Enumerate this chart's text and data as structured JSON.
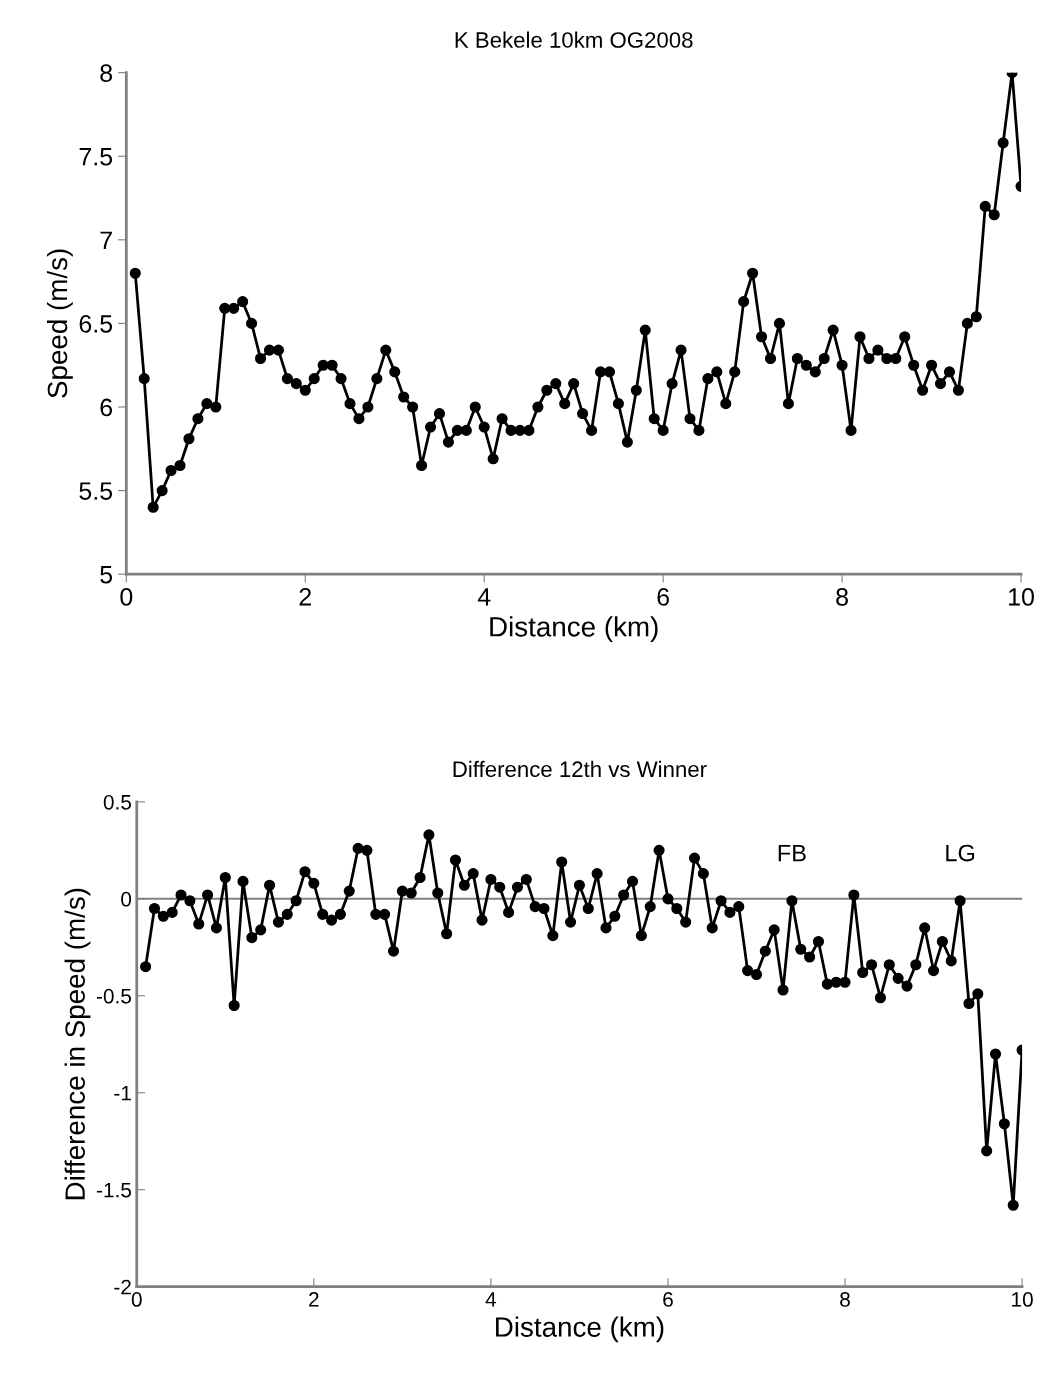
{
  "chart_data": [
    {
      "type": "line",
      "title": "K Bekele 10km OG2008",
      "xlabel": "Distance (km)",
      "ylabel": "Speed (m/s)",
      "x": [
        0.1,
        0.2,
        0.3,
        0.4,
        0.5,
        0.6,
        0.7,
        0.8,
        0.9,
        1.0,
        1.1,
        1.2,
        1.3,
        1.4,
        1.5,
        1.6,
        1.7,
        1.8,
        1.9,
        2.0,
        2.1,
        2.2,
        2.3,
        2.4,
        2.5,
        2.6,
        2.7,
        2.8,
        2.9,
        3.0,
        3.1,
        3.2,
        3.3,
        3.4,
        3.5,
        3.6,
        3.7,
        3.8,
        3.9,
        4.0,
        4.1,
        4.2,
        4.3,
        4.4,
        4.5,
        4.6,
        4.7,
        4.8,
        4.9,
        5.0,
        5.1,
        5.2,
        5.3,
        5.4,
        5.5,
        5.6,
        5.7,
        5.8,
        5.9,
        6.0,
        6.1,
        6.2,
        6.3,
        6.4,
        6.5,
        6.6,
        6.7,
        6.8,
        6.9,
        7.0,
        7.1,
        7.2,
        7.3,
        7.4,
        7.5,
        7.6,
        7.7,
        7.8,
        7.9,
        8.0,
        8.1,
        8.2,
        8.3,
        8.4,
        8.5,
        8.6,
        8.7,
        8.8,
        8.9,
        9.0,
        9.1,
        9.2,
        9.3,
        9.4,
        9.5,
        9.6,
        9.7,
        9.8,
        9.9,
        10.0
      ],
      "series": [
        {
          "color": "#000000",
          "values": [
            6.8,
            6.17,
            5.4,
            5.5,
            5.62,
            5.65,
            5.81,
            5.93,
            6.02,
            6.0,
            6.59,
            6.59,
            6.63,
            6.5,
            6.29,
            6.34,
            6.34,
            6.17,
            6.14,
            6.1,
            6.17,
            6.25,
            6.25,
            6.17,
            6.02,
            5.93,
            6.0,
            6.17,
            6.34,
            6.21,
            6.06,
            6.0,
            5.65,
            5.88,
            5.96,
            5.79,
            5.86,
            5.86,
            6.0,
            5.88,
            5.69,
            5.93,
            5.86,
            5.86,
            5.86,
            6.0,
            6.1,
            6.14,
            6.02,
            6.14,
            5.96,
            5.86,
            6.21,
            6.21,
            6.02,
            5.79,
            6.1,
            6.46,
            5.93,
            5.86,
            6.14,
            6.34,
            5.93,
            5.86,
            6.17,
            6.21,
            6.02,
            6.21,
            6.63,
            6.8,
            6.42,
            6.29,
            6.5,
            6.02,
            6.29,
            6.25,
            6.21,
            6.29,
            6.46,
            6.25,
            5.86,
            6.42,
            6.29,
            6.34,
            6.29,
            6.29,
            6.42,
            6.25,
            6.1,
            6.25,
            6.14,
            6.21,
            6.1,
            6.5,
            6.54,
            7.2,
            7.15,
            7.58,
            8.0,
            7.32
          ]
        }
      ],
      "xlim": [
        0,
        10
      ],
      "xticks": [
        0,
        2,
        4,
        6,
        8,
        10
      ],
      "ylim": [
        5,
        8
      ],
      "yticks": [
        5,
        5.5,
        6,
        6.5,
        7,
        7.5,
        8
      ],
      "marker": "circle",
      "line_style": "solid",
      "grid": false,
      "legend": false
    },
    {
      "type": "line",
      "title": "Difference 12th vs Winner",
      "xlabel": "Distance (km)",
      "ylabel": "Difference in Speed (m/s)",
      "x": [
        0.1,
        0.2,
        0.3,
        0.4,
        0.5,
        0.6,
        0.7,
        0.8,
        0.9,
        1.0,
        1.1,
        1.2,
        1.3,
        1.4,
        1.5,
        1.6,
        1.7,
        1.8,
        1.9,
        2.0,
        2.1,
        2.2,
        2.3,
        2.4,
        2.5,
        2.6,
        2.7,
        2.8,
        2.9,
        3.0,
        3.1,
        3.2,
        3.3,
        3.4,
        3.5,
        3.6,
        3.7,
        3.8,
        3.9,
        4.0,
        4.1,
        4.2,
        4.3,
        4.4,
        4.5,
        4.6,
        4.7,
        4.8,
        4.9,
        5.0,
        5.1,
        5.2,
        5.3,
        5.4,
        5.5,
        5.6,
        5.7,
        5.8,
        5.9,
        6.0,
        6.1,
        6.2,
        6.3,
        6.4,
        6.5,
        6.6,
        6.7,
        6.8,
        6.9,
        7.0,
        7.1,
        7.2,
        7.3,
        7.4,
        7.5,
        7.6,
        7.7,
        7.8,
        7.9,
        8.0,
        8.1,
        8.2,
        8.3,
        8.4,
        8.5,
        8.6,
        8.7,
        8.8,
        8.9,
        9.0,
        9.1,
        9.2,
        9.3,
        9.4,
        9.5,
        9.6,
        9.7,
        9.8,
        9.9,
        10.0
      ],
      "series": [
        {
          "color": "#000000",
          "values": [
            -0.35,
            -0.05,
            -0.09,
            -0.07,
            0.02,
            -0.01,
            -0.13,
            0.02,
            -0.15,
            0.11,
            -0.55,
            0.09,
            -0.2,
            -0.16,
            0.07,
            -0.12,
            -0.08,
            -0.01,
            0.14,
            0.08,
            -0.08,
            -0.11,
            -0.08,
            0.04,
            0.26,
            0.25,
            -0.08,
            -0.08,
            -0.27,
            0.04,
            0.03,
            0.11,
            0.33,
            0.03,
            -0.18,
            0.2,
            0.07,
            0.13,
            -0.11,
            0.1,
            0.06,
            -0.07,
            0.06,
            0.1,
            -0.04,
            -0.05,
            -0.19,
            0.19,
            -0.12,
            0.07,
            -0.05,
            0.13,
            -0.15,
            -0.09,
            0.02,
            0.09,
            -0.19,
            -0.04,
            0.25,
            0.0,
            -0.05,
            -0.12,
            0.21,
            0.13,
            -0.15,
            -0.01,
            -0.07,
            -0.04,
            -0.37,
            -0.39,
            -0.27,
            -0.16,
            -0.47,
            -0.01,
            -0.26,
            -0.3,
            -0.22,
            -0.44,
            -0.43,
            -0.43,
            0.02,
            -0.38,
            -0.34,
            -0.51,
            -0.34,
            -0.41,
            -0.45,
            -0.34,
            -0.15,
            -0.37,
            -0.22,
            -0.32,
            -0.01,
            -0.54,
            -0.49,
            -1.3,
            -0.8,
            -1.16,
            -1.58,
            -0.78
          ]
        }
      ],
      "xlim": [
        0,
        10
      ],
      "xticks": [
        0,
        2,
        4,
        6,
        8,
        10
      ],
      "ylim": [
        -2,
        0.5
      ],
      "yticks": [
        {
          "value": -2,
          "label": "-2"
        },
        {
          "value": -1.5,
          "label": "-1.5"
        },
        {
          "value": -1,
          "label": "-1"
        },
        {
          "value": -0.5,
          "label": "-0.5"
        },
        0,
        0.5
      ],
      "ref_lines": [
        {
          "axis": "y",
          "value": 0,
          "color": "#808080"
        }
      ],
      "annotations": [
        {
          "text": "FB",
          "x": 7.4,
          "y": -0.01
        },
        {
          "text": "LG",
          "x": 9.3,
          "y": -0.01
        }
      ],
      "marker": "circle",
      "line_style": "solid",
      "grid": false,
      "legend": false
    }
  ]
}
